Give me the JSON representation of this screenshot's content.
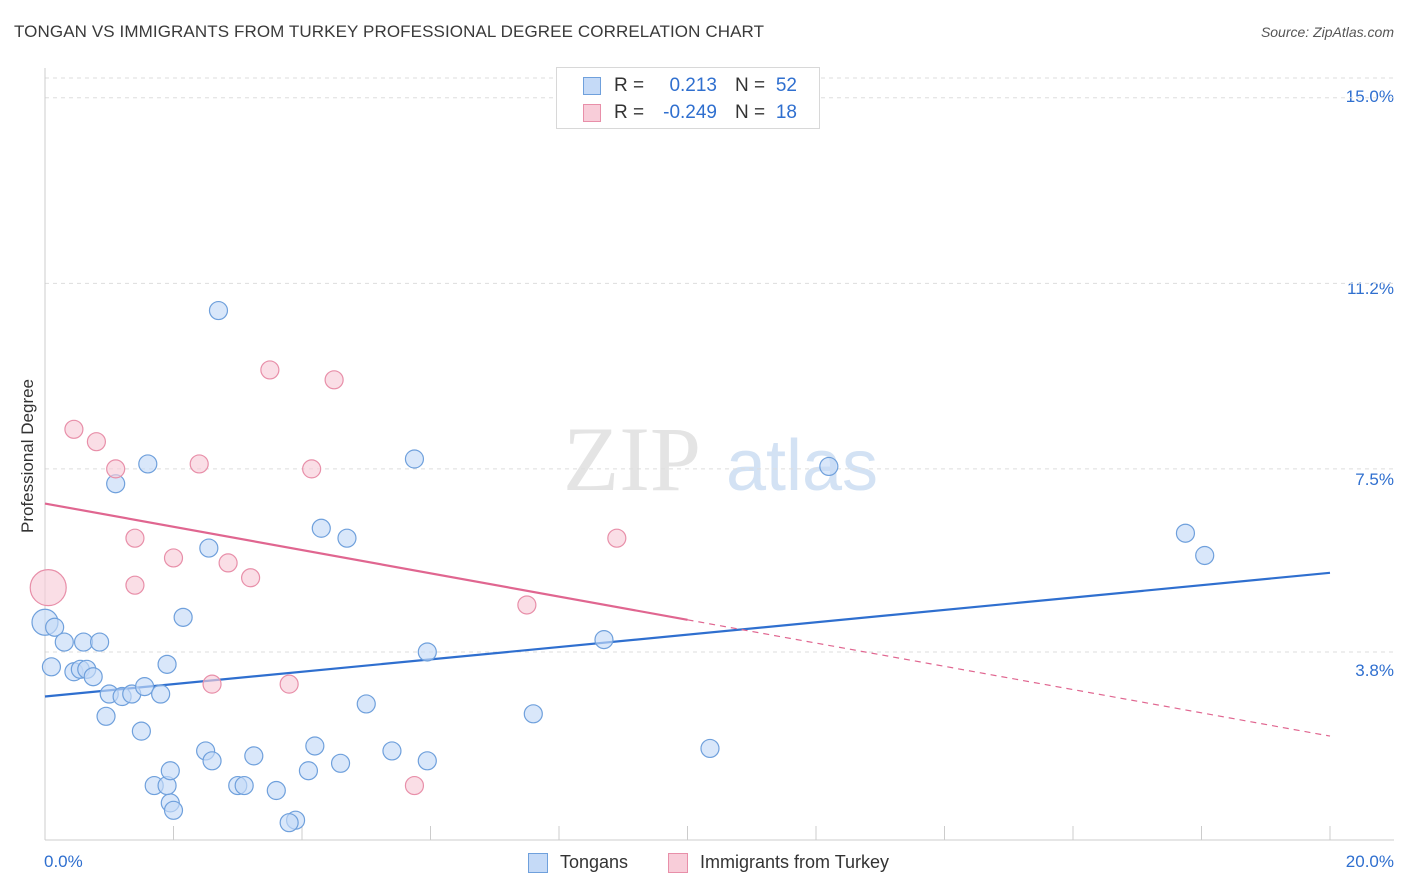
{
  "title": "TONGAN VS IMMIGRANTS FROM TURKEY PROFESSIONAL DEGREE CORRELATION CHART",
  "source": "Source: ZipAtlas.com",
  "watermark": {
    "zip": "ZIP",
    "atlas": "atlas"
  },
  "colors": {
    "blue_fill": "#c5daf7",
    "blue_stroke": "#6fa0dc",
    "blue_line": "#2f6fcf",
    "pink_fill": "#f8cdd9",
    "pink_stroke": "#e88fa9",
    "pink_line": "#e06690",
    "tick_text": "#2f6fcf",
    "grid": "#dddddd"
  },
  "legend": {
    "rows": [
      {
        "r_label": "R =",
        "r_value": "0.213",
        "n_label": "N =",
        "n_value": "52"
      },
      {
        "r_label": "R =",
        "r_value": "-0.249",
        "n_label": "N =",
        "n_value": "18"
      }
    ],
    "bottom": [
      "Tongans",
      "Immigrants from Turkey"
    ]
  },
  "chart_data": {
    "type": "scatter",
    "title": "TONGAN VS IMMIGRANTS FROM TURKEY PROFESSIONAL DEGREE CORRELATION CHART",
    "xlabel": "",
    "ylabel": "Professional Degree",
    "x_tick_labels": [
      "0.0%",
      "20.0%"
    ],
    "y_tick_labels": [
      "15.0%",
      "11.2%",
      "7.5%",
      "3.8%"
    ],
    "xlim": [
      0,
      20
    ],
    "ylim": [
      0,
      15.4
    ],
    "y_gridlines": [
      3.8,
      7.5,
      11.25,
      15.0
    ],
    "series": [
      {
        "name": "Tongans",
        "r": 0.213,
        "n": 52,
        "trend": {
          "x0": 0,
          "y0": 2.9,
          "x1": 20,
          "y1": 5.4
        },
        "points": [
          [
            0.0,
            4.4,
            26
          ],
          [
            0.15,
            4.3,
            18
          ],
          [
            0.3,
            4.0,
            18
          ],
          [
            0.45,
            3.4,
            18
          ],
          [
            0.55,
            3.45,
            18
          ],
          [
            0.65,
            3.45,
            18
          ],
          [
            0.75,
            3.3,
            18
          ],
          [
            0.6,
            4.0,
            18
          ],
          [
            0.85,
            4.0,
            18
          ],
          [
            0.1,
            3.5,
            18
          ],
          [
            1.0,
            2.95,
            18
          ],
          [
            1.2,
            2.9,
            18
          ],
          [
            1.35,
            2.95,
            18
          ],
          [
            1.55,
            3.1,
            18
          ],
          [
            1.8,
            2.95,
            18
          ],
          [
            0.95,
            2.5,
            18
          ],
          [
            1.5,
            2.2,
            18
          ],
          [
            1.9,
            3.55,
            18
          ],
          [
            2.15,
            4.5,
            18
          ],
          [
            1.6,
            7.6,
            18
          ],
          [
            1.1,
            7.2,
            18
          ],
          [
            2.7,
            10.7,
            18
          ],
          [
            2.55,
            5.9,
            18
          ],
          [
            2.5,
            1.8,
            18
          ],
          [
            2.6,
            1.6,
            18
          ],
          [
            3.25,
            1.7,
            18
          ],
          [
            3.0,
            1.1,
            18
          ],
          [
            3.1,
            1.1,
            18
          ],
          [
            3.6,
            1.0,
            18
          ],
          [
            3.9,
            0.4,
            18
          ],
          [
            3.8,
            0.35,
            18
          ],
          [
            4.1,
            1.4,
            18
          ],
          [
            4.2,
            1.9,
            18
          ],
          [
            4.6,
            1.55,
            18
          ],
          [
            4.3,
            6.3,
            18
          ],
          [
            4.7,
            6.1,
            18
          ],
          [
            5.0,
            2.75,
            18
          ],
          [
            5.4,
            1.8,
            18
          ],
          [
            5.75,
            7.7,
            18
          ],
          [
            5.95,
            3.8,
            18
          ],
          [
            5.95,
            1.6,
            18
          ],
          [
            7.6,
            2.55,
            18
          ],
          [
            8.7,
            4.05,
            18
          ],
          [
            10.35,
            1.85,
            18
          ],
          [
            12.2,
            7.55,
            18
          ],
          [
            17.75,
            6.2,
            18
          ],
          [
            18.05,
            5.75,
            18
          ],
          [
            1.95,
            0.75,
            18
          ],
          [
            2.0,
            0.6,
            18
          ],
          [
            1.7,
            1.1,
            18
          ],
          [
            1.9,
            1.1,
            18
          ],
          [
            1.95,
            1.4,
            18
          ]
        ]
      },
      {
        "name": "Immigrants from Turkey",
        "r": -0.249,
        "n": 18,
        "trend": {
          "x0": 0,
          "y0": 6.8,
          "x1": 10.0,
          "y1": 4.45,
          "dash_x1": 20,
          "dash_y1": 2.1
        },
        "points": [
          [
            0.05,
            5.1,
            36
          ],
          [
            0.45,
            8.3,
            18
          ],
          [
            0.8,
            8.05,
            18
          ],
          [
            1.1,
            7.5,
            18
          ],
          [
            1.4,
            6.1,
            18
          ],
          [
            1.4,
            5.15,
            18
          ],
          [
            2.0,
            5.7,
            18
          ],
          [
            2.4,
            7.6,
            18
          ],
          [
            2.85,
            5.6,
            18
          ],
          [
            3.2,
            5.3,
            18
          ],
          [
            3.5,
            9.5,
            18
          ],
          [
            4.15,
            7.5,
            18
          ],
          [
            4.5,
            9.3,
            18
          ],
          [
            2.6,
            3.15,
            18
          ],
          [
            3.8,
            3.15,
            18
          ],
          [
            7.5,
            4.75,
            18
          ],
          [
            8.9,
            6.1,
            18
          ],
          [
            5.75,
            1.1,
            18
          ]
        ]
      }
    ],
    "legend_position": "top-center",
    "grid": true
  }
}
